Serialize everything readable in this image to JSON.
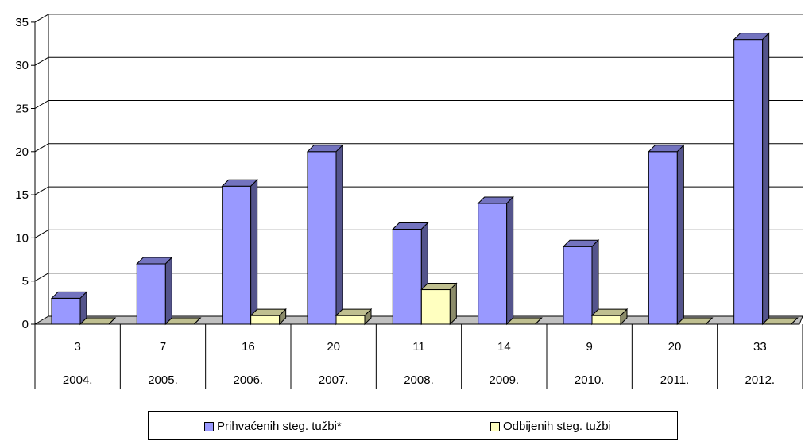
{
  "chart_data": {
    "type": "bar",
    "categories": [
      "2004.",
      "2005.",
      "2006.",
      "2007.",
      "2008.",
      "2009.",
      "2010.",
      "2011.",
      "2012."
    ],
    "table_row_values": [
      "3",
      "7",
      "16",
      "20",
      "11",
      "14",
      "9",
      "20",
      "33"
    ],
    "series": [
      {
        "name": "Prihvaćenih steg. tužbi*",
        "values": [
          3,
          7,
          16,
          20,
          11,
          14,
          9,
          20,
          33
        ],
        "color": "#9999ff"
      },
      {
        "name": "Odbijenih steg. tužbi",
        "values": [
          0,
          0,
          1,
          1,
          4,
          0,
          1,
          0,
          0
        ],
        "color": "#ffffc0"
      }
    ],
    "yticks": [
      "0",
      "5",
      "10",
      "15",
      "20",
      "25",
      "30",
      "35"
    ],
    "ylim": [
      0,
      35
    ],
    "title": "",
    "xlabel": "",
    "ylabel": "",
    "grid": true,
    "legend_position": "bottom",
    "style": "3d-column"
  }
}
